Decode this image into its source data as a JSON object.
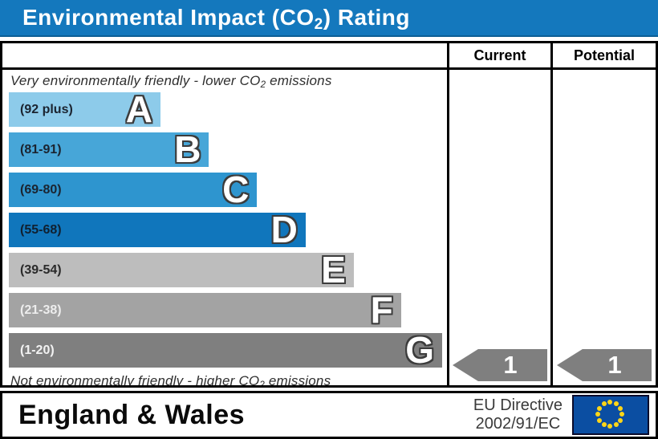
{
  "header": {
    "title_parts": [
      "Environmental Impact (CO",
      "2",
      ") Rating"
    ],
    "bar_color": "#1478bd"
  },
  "table": {
    "columns": [
      "Current",
      "Potential"
    ],
    "top_note_parts": [
      "Very environmentally friendly - lower CO",
      "2",
      " emissions"
    ],
    "bottom_note_parts": [
      "Not environmentally friendly - higher CO",
      "2",
      " emissions"
    ]
  },
  "chart_data": {
    "type": "bar",
    "title": "Environmental Impact (CO2) Rating",
    "bands": [
      {
        "letter": "A",
        "range": "(92 plus)",
        "color": "#8dcbea",
        "label_color": "#1b2430",
        "width_pct": 35
      },
      {
        "letter": "B",
        "range": "(81-91)",
        "color": "#47a6d8",
        "label_color": "#1b2430",
        "width_pct": 46.2
      },
      {
        "letter": "C",
        "range": "(69-80)",
        "color": "#2e95cf",
        "label_color": "#1b2430",
        "width_pct": 57.3
      },
      {
        "letter": "D",
        "range": "(55-68)",
        "color": "#1076bc",
        "label_color": "#102030",
        "width_pct": 68.5
      },
      {
        "letter": "E",
        "range": "(39-54)",
        "color": "#bdbdbd",
        "label_color": "#2a2a2a",
        "width_pct": 79.6
      },
      {
        "letter": "F",
        "range": "(21-38)",
        "color": "#a3a3a3",
        "label_color": "#ededed",
        "width_pct": 90.5
      },
      {
        "letter": "G",
        "range": "(1-20)",
        "color": "#7f7f7f",
        "label_color": "#f2f2f2",
        "width_pct": 100
      }
    ],
    "current": {
      "value": "1",
      "band": "G"
    },
    "potential": {
      "value": "1",
      "band": "G"
    },
    "arrow_color": "#7f7f7f",
    "legend_position": "top-columns",
    "ylabels": [
      "Current",
      "Potential"
    ]
  },
  "footer": {
    "region": "England & Wales",
    "directive_line1": "EU Directive",
    "directive_line2": "2002/91/EC",
    "eu_flag": {
      "background": "#0b4ea2",
      "star_color": "#ffd617"
    }
  }
}
